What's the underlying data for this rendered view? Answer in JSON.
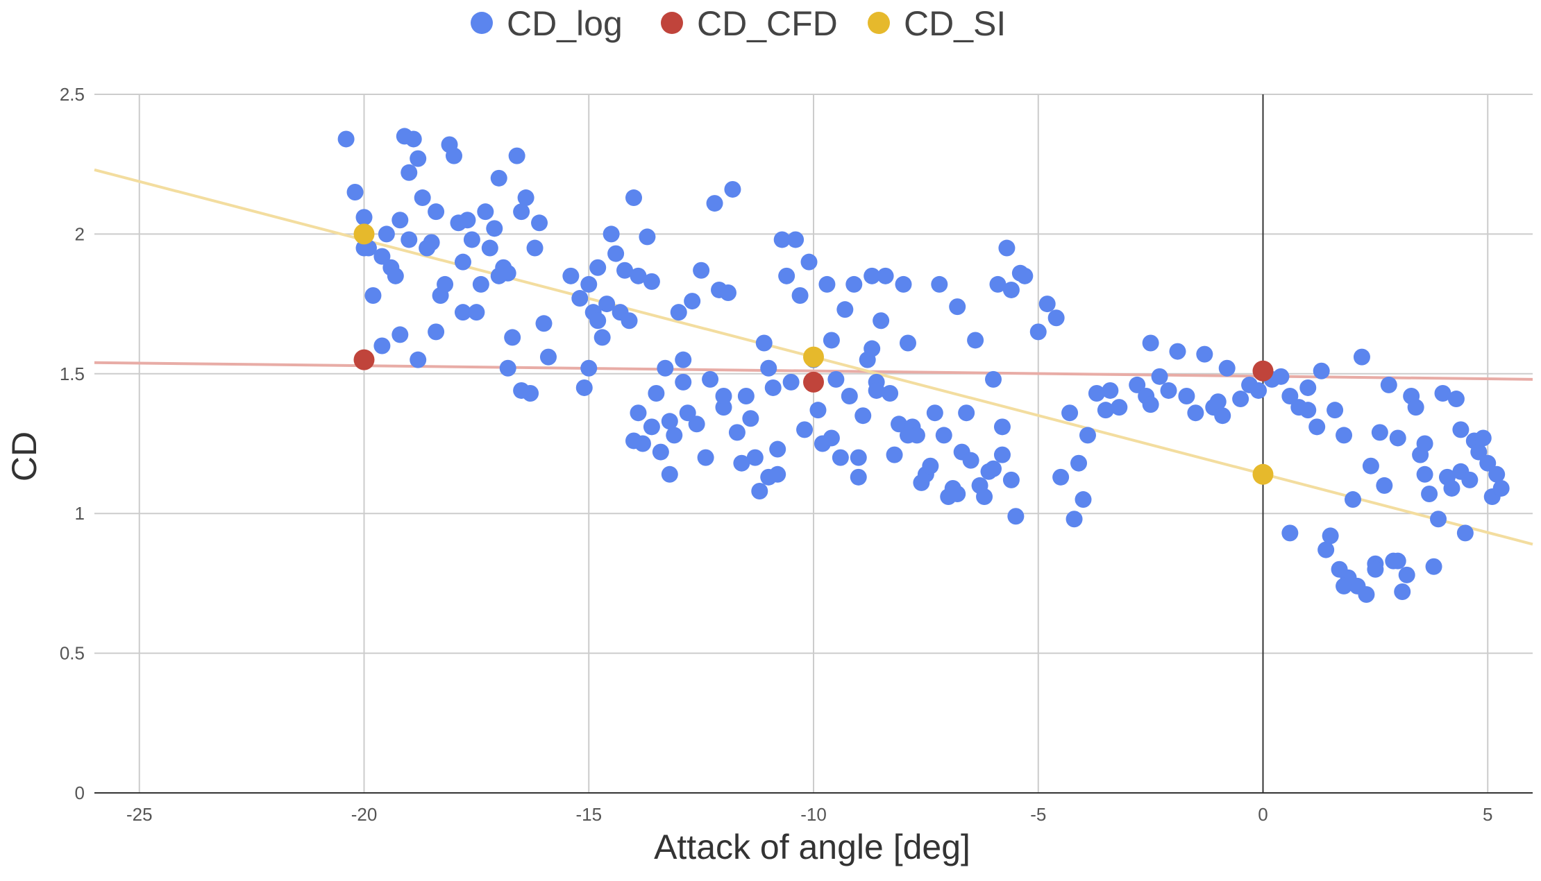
{
  "chart_data": {
    "type": "scatter",
    "title": "",
    "xlabel": "Attack of angle [deg]",
    "ylabel": "CD",
    "xlim": [
      -26,
      6
    ],
    "ylim": [
      0,
      2.5
    ],
    "x_ticks": [
      -25,
      -20,
      -15,
      -10,
      -5,
      0,
      5
    ],
    "x_tick_labels": [
      "-25",
      "-20",
      "-15",
      "-10",
      "-5",
      "0",
      "5"
    ],
    "y_ticks": [
      0,
      0.5,
      1,
      1.5,
      2,
      2.5
    ],
    "y_tick_labels": [
      "0",
      "0.5",
      "1",
      "1.5",
      "2",
      "2.5"
    ],
    "grid": true,
    "zero_line_x": 0,
    "legend_position": "top-center",
    "series": [
      {
        "name": "CD_log",
        "color": "#5b85ee",
        "points": [
          [
            -20.4,
            2.34
          ],
          [
            -20.2,
            2.15
          ],
          [
            -20.0,
            2.06
          ],
          [
            -19.9,
            1.95
          ],
          [
            -19.8,
            1.78
          ],
          [
            -19.6,
            1.92
          ],
          [
            -19.5,
            2.0
          ],
          [
            -19.4,
            1.88
          ],
          [
            -19.3,
            1.85
          ],
          [
            -19.2,
            2.05
          ],
          [
            -19.1,
            2.35
          ],
          [
            -19.0,
            2.22
          ],
          [
            -18.9,
            2.34
          ],
          [
            -18.8,
            2.27
          ],
          [
            -18.7,
            2.13
          ],
          [
            -18.6,
            1.95
          ],
          [
            -18.5,
            1.97
          ],
          [
            -18.4,
            2.08
          ],
          [
            -18.3,
            1.78
          ],
          [
            -18.2,
            1.82
          ],
          [
            -18.1,
            2.32
          ],
          [
            -18.0,
            2.28
          ],
          [
            -17.9,
            2.04
          ],
          [
            -17.8,
            1.72
          ],
          [
            -17.7,
            2.05
          ],
          [
            -17.6,
            1.98
          ],
          [
            -17.5,
            1.72
          ],
          [
            -17.4,
            1.82
          ],
          [
            -17.3,
            2.08
          ],
          [
            -17.2,
            1.95
          ],
          [
            -17.1,
            2.02
          ],
          [
            -17.0,
            2.2
          ],
          [
            -16.9,
            1.88
          ],
          [
            -16.8,
            1.86
          ],
          [
            -16.7,
            1.63
          ],
          [
            -16.6,
            2.28
          ],
          [
            -16.5,
            2.08
          ],
          [
            -16.4,
            2.13
          ],
          [
            -16.3,
            1.43
          ],
          [
            -16.2,
            1.95
          ],
          [
            -16.1,
            2.04
          ],
          [
            -16.0,
            1.68
          ],
          [
            -15.9,
            1.56
          ],
          [
            -19.6,
            1.6
          ],
          [
            -19.2,
            1.64
          ],
          [
            -18.8,
            1.55
          ],
          [
            -18.4,
            1.65
          ],
          [
            -17.0,
            1.85
          ],
          [
            -16.8,
            1.52
          ],
          [
            -16.5,
            1.44
          ],
          [
            -20.0,
            1.95
          ],
          [
            -19.0,
            1.98
          ],
          [
            -17.8,
            1.9
          ],
          [
            -15.4,
            1.85
          ],
          [
            -15.2,
            1.77
          ],
          [
            -15.0,
            1.82
          ],
          [
            -14.9,
            1.72
          ],
          [
            -14.8,
            1.88
          ],
          [
            -14.7,
            1.63
          ],
          [
            -14.6,
            1.75
          ],
          [
            -14.5,
            2.0
          ],
          [
            -14.4,
            1.93
          ],
          [
            -14.3,
            1.72
          ],
          [
            -14.2,
            1.87
          ],
          [
            -14.1,
            1.69
          ],
          [
            -14.0,
            2.13
          ],
          [
            -13.9,
            1.36
          ],
          [
            -13.8,
            1.25
          ],
          [
            -13.7,
            1.99
          ],
          [
            -13.6,
            1.83
          ],
          [
            -13.5,
            1.43
          ],
          [
            -13.4,
            1.22
          ],
          [
            -13.3,
            1.52
          ],
          [
            -13.2,
            1.14
          ],
          [
            -13.1,
            1.28
          ],
          [
            -13.0,
            1.72
          ],
          [
            -12.9,
            1.47
          ],
          [
            -12.8,
            1.36
          ],
          [
            -12.7,
            1.76
          ],
          [
            -12.6,
            1.32
          ],
          [
            -12.5,
            1.87
          ],
          [
            -12.4,
            1.2
          ],
          [
            -12.3,
            1.48
          ],
          [
            -12.2,
            2.11
          ],
          [
            -12.1,
            1.8
          ],
          [
            -12.0,
            1.38
          ],
          [
            -11.9,
            1.79
          ],
          [
            -11.8,
            2.16
          ],
          [
            -11.7,
            1.29
          ],
          [
            -11.6,
            1.18
          ],
          [
            -11.5,
            1.42
          ],
          [
            -11.4,
            1.34
          ],
          [
            -11.3,
            1.2
          ],
          [
            -11.2,
            1.08
          ],
          [
            -11.1,
            1.61
          ],
          [
            -11.0,
            1.52
          ],
          [
            -10.9,
            1.45
          ],
          [
            -10.8,
            1.23
          ],
          [
            -10.7,
            1.98
          ],
          [
            -10.6,
            1.85
          ],
          [
            -10.5,
            1.47
          ],
          [
            -10.4,
            1.98
          ],
          [
            -10.3,
            1.78
          ],
          [
            -10.2,
            1.3
          ],
          [
            -10.1,
            1.9
          ],
          [
            -10.0,
            1.55
          ],
          [
            -9.9,
            1.37
          ],
          [
            -9.8,
            1.25
          ],
          [
            -9.7,
            1.82
          ],
          [
            -9.6,
            1.62
          ],
          [
            -9.5,
            1.48
          ],
          [
            -9.4,
            1.2
          ],
          [
            -9.3,
            1.73
          ],
          [
            -9.2,
            1.42
          ],
          [
            -9.1,
            1.82
          ],
          [
            -9.0,
            1.13
          ],
          [
            -8.9,
            1.35
          ],
          [
            -8.8,
            1.55
          ],
          [
            -8.7,
            1.85
          ],
          [
            -8.6,
            1.47
          ],
          [
            -8.5,
            1.69
          ],
          [
            -8.4,
            1.85
          ],
          [
            -8.3,
            1.43
          ],
          [
            -8.2,
            1.21
          ],
          [
            -8.1,
            1.32
          ],
          [
            -8.0,
            1.82
          ],
          [
            -7.9,
            1.61
          ],
          [
            -7.8,
            1.31
          ],
          [
            -7.7,
            1.28
          ],
          [
            -7.6,
            1.11
          ],
          [
            -7.5,
            1.14
          ],
          [
            -7.4,
            1.17
          ],
          [
            -7.3,
            1.36
          ],
          [
            -7.2,
            1.82
          ],
          [
            -7.1,
            1.28
          ],
          [
            -7.0,
            1.06
          ],
          [
            -6.9,
            1.09
          ],
          [
            -6.8,
            1.74
          ],
          [
            -6.7,
            1.22
          ],
          [
            -6.6,
            1.36
          ],
          [
            -6.5,
            1.19
          ],
          [
            -6.4,
            1.62
          ],
          [
            -6.3,
            1.1
          ],
          [
            -6.2,
            1.06
          ],
          [
            -6.1,
            1.15
          ],
          [
            -6.0,
            1.48
          ],
          [
            -5.9,
            1.82
          ],
          [
            -5.8,
            1.21
          ],
          [
            -5.7,
            1.95
          ],
          [
            -5.6,
            1.8
          ],
          [
            -5.5,
            0.99
          ],
          [
            -5.4,
            1.86
          ],
          [
            -5.3,
            1.85
          ],
          [
            -5.0,
            1.65
          ],
          [
            -4.8,
            1.75
          ],
          [
            -4.6,
            1.7
          ],
          [
            -4.5,
            1.13
          ],
          [
            -4.3,
            1.36
          ],
          [
            -4.2,
            0.98
          ],
          [
            -4.0,
            1.05
          ],
          [
            -3.9,
            1.28
          ],
          [
            -3.7,
            1.43
          ],
          [
            -3.5,
            1.37
          ],
          [
            -3.4,
            1.44
          ],
          [
            -3.2,
            1.38
          ],
          [
            -2.8,
            1.46
          ],
          [
            -2.6,
            1.42
          ],
          [
            -2.5,
            1.61
          ],
          [
            -2.3,
            1.49
          ],
          [
            -2.1,
            1.44
          ],
          [
            -1.9,
            1.58
          ],
          [
            -1.7,
            1.42
          ],
          [
            -1.5,
            1.36
          ],
          [
            -1.3,
            1.57
          ],
          [
            -1.1,
            1.38
          ],
          [
            -1.0,
            1.4
          ],
          [
            -0.8,
            1.52
          ],
          [
            -0.5,
            1.41
          ],
          [
            -0.3,
            1.46
          ],
          [
            -0.1,
            1.44
          ],
          [
            0.2,
            1.48
          ],
          [
            0.4,
            1.49
          ],
          [
            0.6,
            1.42
          ],
          [
            0.8,
            1.38
          ],
          [
            1.0,
            1.45
          ],
          [
            1.2,
            1.31
          ],
          [
            1.3,
            1.51
          ],
          [
            1.4,
            0.87
          ],
          [
            1.5,
            0.92
          ],
          [
            1.6,
            1.37
          ],
          [
            1.7,
            0.8
          ],
          [
            1.8,
            1.28
          ],
          [
            1.9,
            0.77
          ],
          [
            2.0,
            1.05
          ],
          [
            2.1,
            0.74
          ],
          [
            2.2,
            1.56
          ],
          [
            2.3,
            0.71
          ],
          [
            2.4,
            1.17
          ],
          [
            2.5,
            0.82
          ],
          [
            2.6,
            1.29
          ],
          [
            2.7,
            1.1
          ],
          [
            2.8,
            1.46
          ],
          [
            2.9,
            0.83
          ],
          [
            3.0,
            1.27
          ],
          [
            3.1,
            0.72
          ],
          [
            3.2,
            0.78
          ],
          [
            3.3,
            1.42
          ],
          [
            3.4,
            1.38
          ],
          [
            3.5,
            1.21
          ],
          [
            3.6,
            1.25
          ],
          [
            3.7,
            1.07
          ],
          [
            3.8,
            0.81
          ],
          [
            3.9,
            0.98
          ],
          [
            4.0,
            1.43
          ],
          [
            4.1,
            1.13
          ],
          [
            4.2,
            1.09
          ],
          [
            4.3,
            1.41
          ],
          [
            4.4,
            1.15
          ],
          [
            4.5,
            0.93
          ],
          [
            4.6,
            1.12
          ],
          [
            4.7,
            1.26
          ],
          [
            4.8,
            1.22
          ],
          [
            4.9,
            1.27
          ],
          [
            5.0,
            1.18
          ],
          [
            5.1,
            1.06
          ],
          [
            5.2,
            1.14
          ],
          [
            5.3,
            1.09
          ],
          [
            0.6,
            0.93
          ],
          [
            1.8,
            0.74
          ],
          [
            2.5,
            0.8
          ],
          [
            3.0,
            0.83
          ],
          [
            -13.6,
            1.31
          ],
          [
            -13.2,
            1.33
          ],
          [
            -12.0,
            1.42
          ],
          [
            -11.0,
            1.13
          ],
          [
            -9.6,
            1.27
          ],
          [
            -9.0,
            1.2
          ],
          [
            -8.6,
            1.44
          ],
          [
            -7.9,
            1.28
          ],
          [
            -6.8,
            1.07
          ],
          [
            -6.0,
            1.16
          ],
          [
            -5.6,
            1.12
          ],
          [
            -14.8,
            1.69
          ],
          [
            -13.9,
            1.85
          ],
          [
            -12.9,
            1.55
          ],
          [
            -15.0,
            1.52
          ],
          [
            -15.1,
            1.45
          ],
          [
            -14.0,
            1.26
          ],
          [
            -10.8,
            1.14
          ],
          [
            -8.7,
            1.59
          ],
          [
            -5.8,
            1.31
          ],
          [
            -4.1,
            1.18
          ],
          [
            -2.5,
            1.39
          ],
          [
            -0.9,
            1.35
          ],
          [
            1.0,
            1.37
          ],
          [
            3.6,
            1.14
          ],
          [
            4.4,
            1.3
          ]
        ]
      },
      {
        "name": "CD_CFD",
        "color": "#c0443b",
        "points": [
          [
            -20,
            1.55
          ],
          [
            -10,
            1.47
          ],
          [
            0,
            1.51
          ]
        ]
      },
      {
        "name": "CD_SI",
        "color": "#e6b92c",
        "points": [
          [
            -20,
            2.0
          ],
          [
            -10,
            1.56
          ],
          [
            0,
            1.14
          ]
        ]
      }
    ],
    "trendlines": [
      {
        "series": "CD_CFD",
        "color": "#e8aca6",
        "x": [
          -26,
          6
        ],
        "y": [
          1.54,
          1.48
        ]
      },
      {
        "series": "CD_SI",
        "color": "#f3dd9f",
        "x": [
          -26,
          6
        ],
        "y": [
          2.23,
          0.89
        ]
      }
    ]
  }
}
